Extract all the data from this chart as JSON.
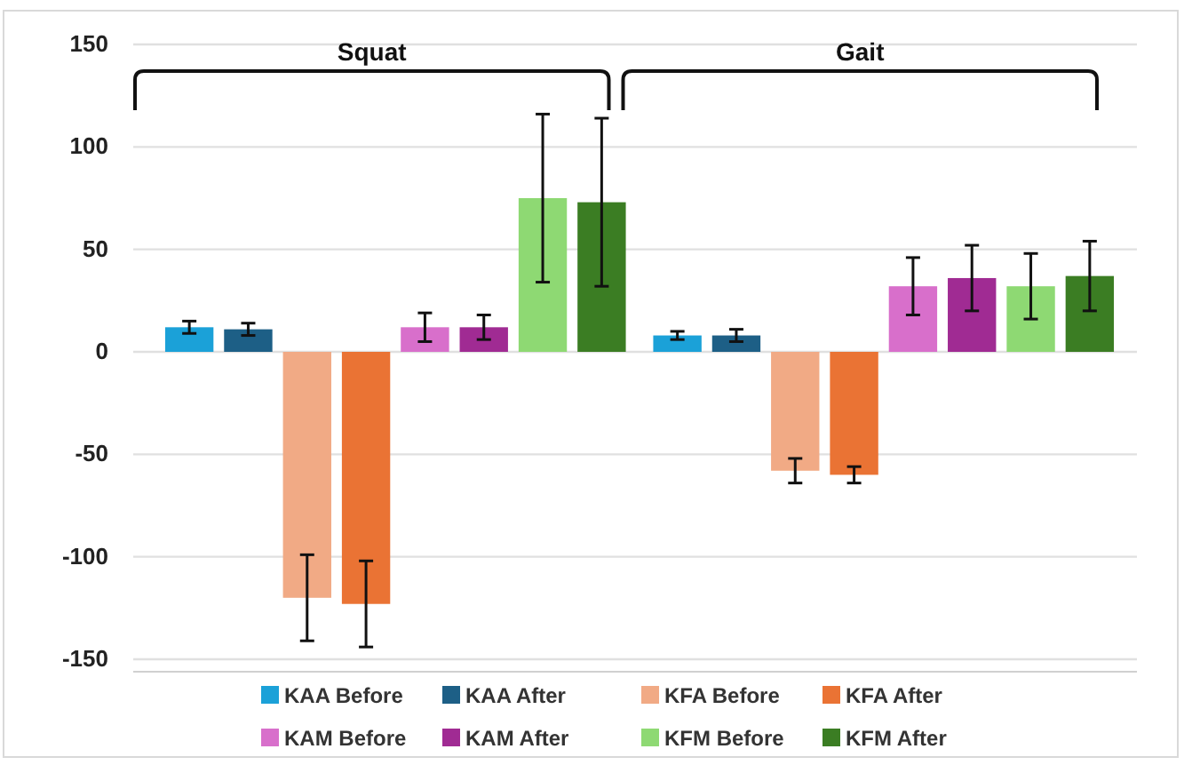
{
  "chart_data": {
    "type": "bar",
    "categories": [
      "Squat",
      "Gait"
    ],
    "series": [
      {
        "name": "KAA Before",
        "color": "#1ba1d8",
        "values": [
          12,
          8
        ],
        "errors": [
          3,
          2
        ]
      },
      {
        "name": "KAA After",
        "color": "#1d5f86",
        "values": [
          11,
          8
        ],
        "errors": [
          3,
          3
        ]
      },
      {
        "name": "KFA Before",
        "color": "#f1aa85",
        "values": [
          -120,
          -58
        ],
        "errors": [
          21,
          6
        ]
      },
      {
        "name": "KFA After",
        "color": "#ea7334",
        "values": [
          -123,
          -60
        ],
        "errors": [
          21,
          4
        ]
      },
      {
        "name": "KAM Before",
        "color": "#d86fcb",
        "values": [
          12,
          32
        ],
        "errors": [
          7,
          14
        ]
      },
      {
        "name": "KAM After",
        "color": "#a02b93",
        "values": [
          12,
          36
        ],
        "errors": [
          6,
          16
        ]
      },
      {
        "name": "KFM Before",
        "color": "#8ed973",
        "values": [
          75,
          32
        ],
        "errors": [
          41,
          16
        ]
      },
      {
        "name": "KFM After",
        "color": "#3b7d23",
        "values": [
          73,
          37
        ],
        "errors": [
          41,
          17
        ]
      }
    ],
    "ylim": [
      -150,
      150
    ],
    "yticks": [
      -150,
      -100,
      -50,
      0,
      50,
      100,
      150
    ],
    "grid": "y",
    "legend": "bottom"
  }
}
